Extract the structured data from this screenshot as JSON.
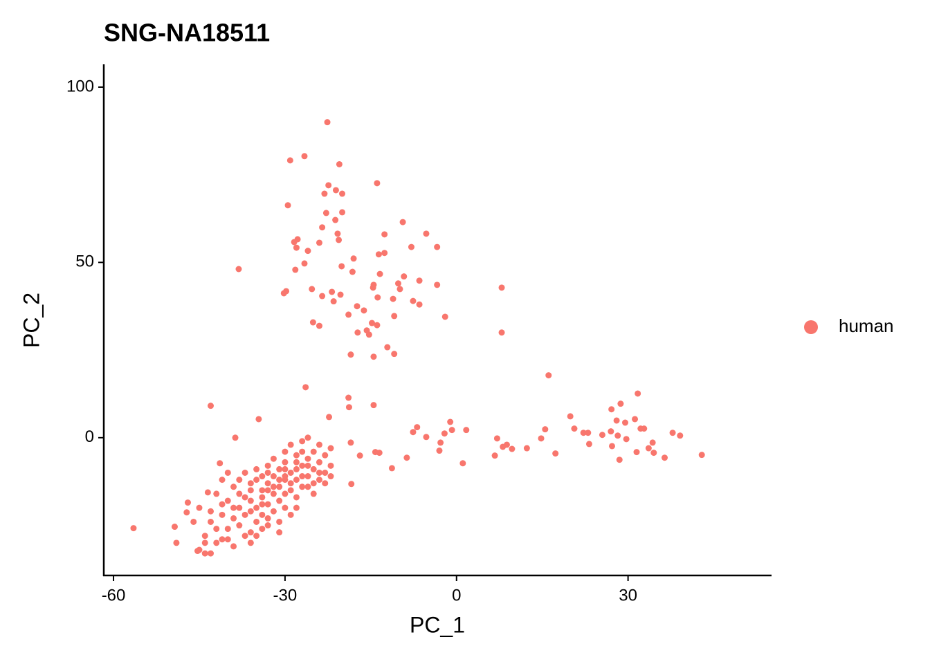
{
  "chart_data": {
    "type": "scatter",
    "title": "SNG-NA18511",
    "x_label": "PC_1",
    "y_label": "PC_2",
    "xlim": [
      -61.7,
      55.1
    ],
    "ylim": [
      -39.3,
      106.5
    ],
    "xticks": [
      -60,
      -30,
      0,
      30
    ],
    "yticks": [
      0,
      50,
      100
    ],
    "grid": false,
    "legend_position": "right",
    "series": [
      {
        "name": "human",
        "color": "#F8766D",
        "x": [
          -56.5,
          -22.6,
          -26.6,
          -29.1,
          -20.5,
          -13.9,
          -22.4,
          -21.1,
          -23.1,
          -20,
          -29.5,
          -22.8,
          -20,
          -21.2,
          -9.4,
          -5.3,
          -23.5,
          -20.8,
          -27.8,
          -28.4,
          -24,
          -20.6,
          -3.4,
          -7.9,
          -28,
          -26,
          -12.6,
          -13.6,
          -18,
          -12.6,
          -38.1,
          -26.6,
          -20.1,
          -28.2,
          -18.2,
          -13.4,
          -9.2,
          -6.5,
          -3.4,
          7.9,
          -14.5,
          -14.6,
          -10.2,
          -9.9,
          -25.3,
          -21.8,
          -29.8,
          -30.2,
          -23.5,
          -20.3,
          -13.8,
          -11.1,
          -7.6,
          -6.5,
          -21.5,
          -17.4,
          -16.2,
          -18.9,
          -10.9,
          -2,
          -25.1,
          -24,
          -14.8,
          -13.9,
          -15.7,
          -17.3,
          -15.3,
          7.9,
          -12.1,
          -10.9,
          -18.5,
          -14.5,
          16.1,
          -26.4,
          -18.9,
          31.7,
          28.7,
          27.1,
          -14.5,
          -43,
          -18.8,
          19.9,
          -34.6,
          -22.3,
          -1.1,
          28,
          29.5,
          31.2,
          -6.9,
          20.6,
          22.2,
          23,
          15.5,
          -0.8,
          1.7,
          32.2,
          32.8,
          -7.6,
          -2.1,
          27,
          25.5,
          28.2,
          37.8,
          39.1,
          -5.3,
          7.1,
          14.8,
          29.7,
          34.3,
          -2.8,
          -18.5,
          8.8,
          23.2,
          27.2,
          8.1,
          9.7,
          12.3,
          33.6,
          -3,
          34.5,
          -14.2,
          -13.5,
          17.3,
          31.5,
          6.7,
          42.9,
          -8.7,
          -16.9,
          36.4,
          28.5,
          1.1,
          -11.3,
          -18.4,
          -49,
          -49.3,
          -47,
          -47.2,
          -45.3,
          -44,
          -43.5,
          -41.4,
          -38.7,
          -44,
          -42,
          -40,
          -43,
          -41,
          -39,
          -38,
          -37,
          -36,
          -35,
          -40,
          -38,
          -36,
          -35,
          -34,
          -33,
          -32,
          -34,
          -33,
          -32,
          -31,
          -30,
          -31,
          -30,
          -29,
          -28,
          -29,
          -28,
          -27,
          -26,
          -27,
          -26,
          -25,
          -24,
          -25,
          -24,
          -23,
          -23,
          -22,
          -22,
          -36,
          -37,
          -35,
          -33,
          -32,
          -30,
          -29,
          -28,
          -27,
          -26,
          -24,
          -31,
          -30,
          -34,
          -36,
          -38,
          -39,
          -41,
          -42,
          -40,
          -33,
          -31,
          -29,
          -31,
          -45,
          -46,
          -43,
          -41,
          -39,
          -37,
          -35,
          -33,
          -32,
          -30,
          -29,
          -28,
          -27,
          -26,
          -25,
          -28,
          -30,
          -32,
          -34,
          -35,
          -33,
          -27,
          -25,
          -24,
          -23,
          -22,
          -26,
          -28,
          -30,
          -31,
          -33,
          -34,
          -36,
          -37,
          -38,
          -39,
          -41,
          -42,
          -43,
          -44,
          -45,
          -40,
          -36,
          -34
        ],
        "values": [
          -25.8,
          90,
          80.3,
          79.1,
          78,
          72.6,
          72,
          70.6,
          69.6,
          69.6,
          66.3,
          64.1,
          64.3,
          62.1,
          61.5,
          58.2,
          60,
          58.2,
          56.6,
          55.8,
          55.6,
          56.4,
          54.4,
          54.4,
          54.2,
          53.3,
          58,
          52.3,
          51.1,
          52.7,
          48.1,
          49.7,
          48.9,
          47.9,
          47.3,
          46.7,
          46,
          44.8,
          43.6,
          42.8,
          43.6,
          42.8,
          44,
          42.4,
          42.4,
          41.6,
          41.8,
          41.2,
          40.4,
          40.8,
          40,
          39.6,
          39,
          38,
          38.9,
          37.5,
          36.3,
          35.1,
          34.7,
          34.5,
          32.9,
          31.9,
          32.7,
          32.1,
          30.6,
          30,
          29.4,
          30,
          25.8,
          23.9,
          23.7,
          23.1,
          17.8,
          14.4,
          11.4,
          12.6,
          9.7,
          8.1,
          9.3,
          9.1,
          8.7,
          6.1,
          5.3,
          5.9,
          4.5,
          4.9,
          4.3,
          5.3,
          3,
          2.6,
          1.4,
          1.4,
          2.4,
          2.2,
          2.2,
          2.6,
          2.6,
          1.6,
          1.2,
          1.8,
          0.8,
          0.6,
          1.4,
          0.6,
          0.2,
          -0.2,
          -0.2,
          -0.4,
          -1.4,
          -1.4,
          -1.4,
          -2,
          -1.8,
          -2.4,
          -2.6,
          -3.2,
          -3,
          -3,
          -3.7,
          -4.3,
          -4.1,
          -4.3,
          -4.5,
          -4.1,
          -5.1,
          -4.9,
          -5.7,
          -5.1,
          -5.7,
          -6.3,
          -7.3,
          -8.7,
          -13.2,
          -30,
          -25.4,
          -18.5,
          -21.3,
          -32.3,
          -33,
          -15.6,
          -7.3,
          0,
          -28,
          -30,
          -26,
          -24,
          -22,
          -20,
          -25,
          -22,
          -27,
          -24,
          -18,
          -16,
          -18,
          -20,
          -22,
          -19,
          -21,
          -15,
          -13,
          -16,
          -18,
          -20,
          -14,
          -12,
          -15,
          -17,
          -10,
          -12,
          -14,
          -11,
          -8,
          -6,
          -9,
          -7,
          -13,
          -12,
          -10,
          -5,
          -8,
          -3,
          -13,
          -10,
          -9,
          -8,
          -6,
          -4,
          -2,
          -5,
          -1,
          0,
          -2,
          -9,
          -7,
          -11,
          -15,
          -12,
          -14,
          -12,
          -16,
          -10,
          -25,
          -24,
          -22,
          -27,
          -20,
          -24,
          -33,
          -29,
          -31,
          -28,
          -28,
          -23,
          -11,
          -9,
          -13,
          -9,
          -11,
          -14,
          -16,
          -20,
          -16,
          -14,
          -17,
          -12,
          -10,
          -4,
          -4,
          -10,
          -13,
          -11,
          -8,
          -7,
          -11,
          -12,
          -15,
          -19,
          -21,
          -17,
          -20,
          -23,
          -19,
          -26,
          -21,
          -30,
          -32,
          -29,
          -30,
          -26
        ]
      }
    ]
  }
}
